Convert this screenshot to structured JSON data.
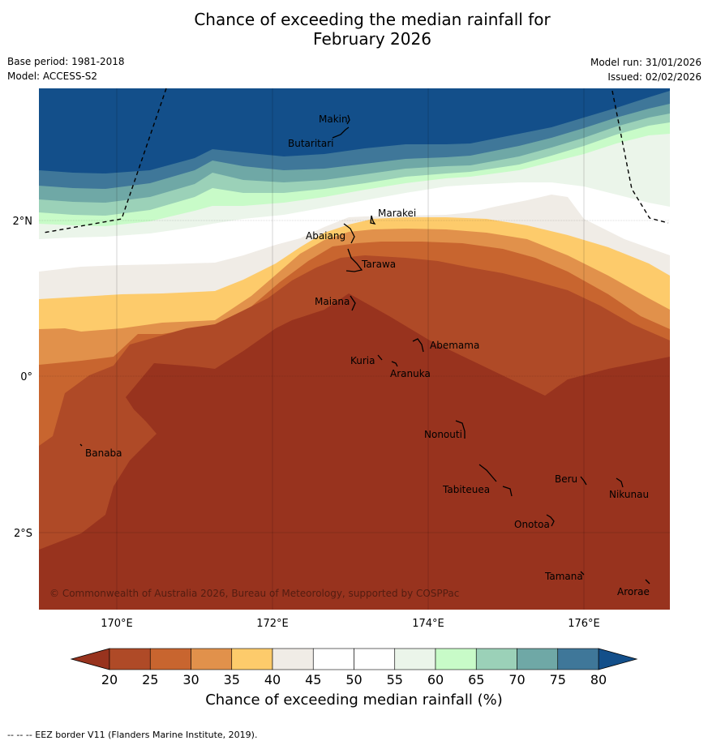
{
  "title_line1": "Chance of exceeding the median rainfall for",
  "title_line2": "February 2026",
  "meta": {
    "base_period": "Base period: 1981-2018",
    "model": "Model: ACCESS-S2",
    "model_run": "Model run: 31/01/2026",
    "issued": "Issued: 02/02/2026"
  },
  "lat_labels": [
    "2°N",
    "0°",
    "2°S"
  ],
  "lon_labels": [
    "170°E",
    "172°E",
    "174°E",
    "176°E"
  ],
  "islands": [
    "Makin",
    "Butaritari",
    "Marakei",
    "Abaiang",
    "Tarawa",
    "Maiana",
    "Abemama",
    "Kuria",
    "Aranuka",
    "Banaba",
    "Nonouti",
    "Beru",
    "Tabiteuea",
    "Nikunau",
    "Onotoa",
    "Tamana",
    "Arorae"
  ],
  "copyright": "© Commonwealth of Australia 2026, Bureau of Meteorology, supported by COSPPac",
  "colorbar": {
    "ticks": [
      "20",
      "25",
      "30",
      "35",
      "40",
      "45",
      "50",
      "55",
      "60",
      "65",
      "70",
      "75",
      "80"
    ],
    "colors": [
      "#af4a27",
      "#c8652f",
      "#e1914b",
      "#fdcb6b",
      "#f0ece6",
      "#ffffff",
      "#ffffff",
      "#ebf5ea",
      "#c8fbc8",
      "#9bd1b8",
      "#6fa8a6",
      "#3f7799"
    ],
    "under_color": "#98331e",
    "over_color": "#134f8a",
    "title": "Chance of exceeding median rainfall (%)"
  },
  "footer": "--  --  -- EEZ border V11 (Flanders Marine Institute, 2019)."
}
